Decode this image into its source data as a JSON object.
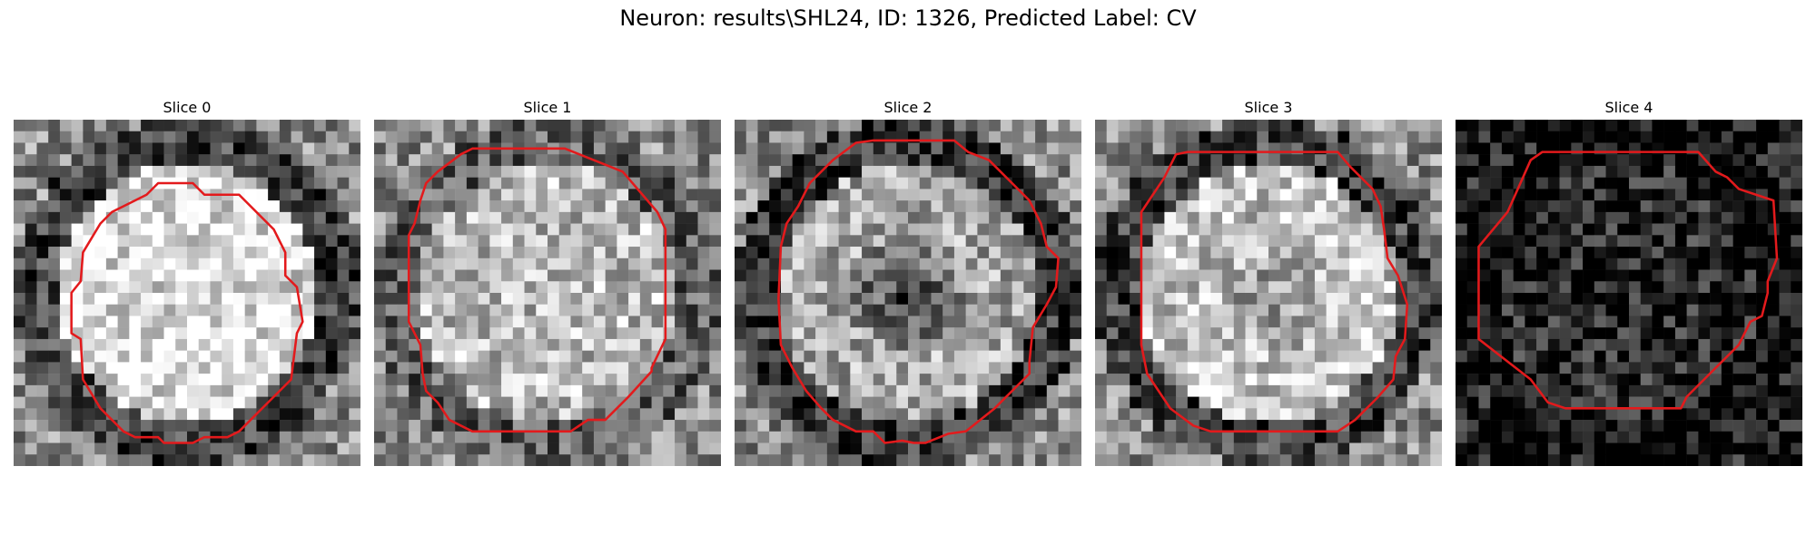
{
  "figure": {
    "title": "Neuron: results\\SHL24, ID: 1326, Predicted Label: CV",
    "contour_color": "#e31a1c",
    "colormap": "grayscale"
  },
  "panels": [
    {
      "title": "Slice 0",
      "seed": 11,
      "center_bias": 0.32,
      "ring_dark": 0.3,
      "dark_core": 0.0,
      "global_dark": 0.0
    },
    {
      "title": "Slice 1",
      "seed": 23,
      "center_bias": 0.18,
      "ring_dark": 0.18,
      "dark_core": 0.0,
      "global_dark": 0.0
    },
    {
      "title": "Slice 2",
      "seed": 37,
      "center_bias": 0.1,
      "ring_dark": 0.35,
      "dark_core": 0.45,
      "global_dark": 0.0
    },
    {
      "title": "Slice 3",
      "seed": 51,
      "center_bias": 0.22,
      "ring_dark": 0.3,
      "dark_core": 0.15,
      "global_dark": 0.0
    },
    {
      "title": "Slice 4",
      "seed": 67,
      "center_bias": 0.05,
      "ring_dark": 0.1,
      "dark_core": 0.0,
      "global_dark": 0.45
    }
  ]
}
